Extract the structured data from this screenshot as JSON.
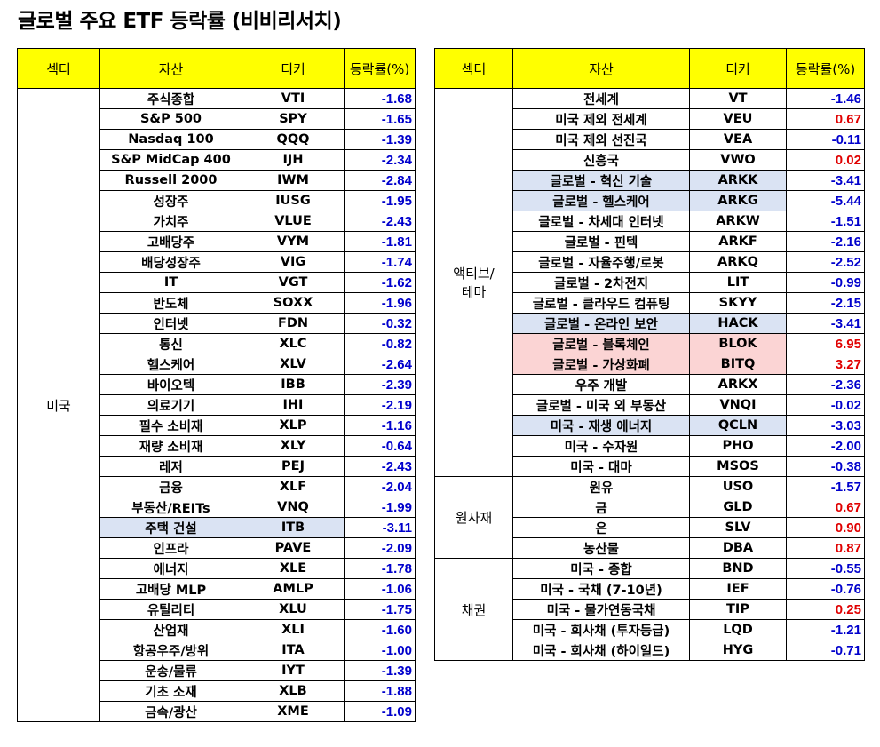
{
  "title": "글로벌 주요 ETF 등락률 (비비리서치)",
  "colors": {
    "header_bg": "#ffff00",
    "negative": "#0000cc",
    "positive": "#e00000",
    "highlight_blue": "#dae3f3",
    "highlight_red": "#fbd4d4"
  },
  "headers": {
    "sector": "섹터",
    "asset": "자산",
    "ticker": "티커",
    "change": "등락률(%)"
  },
  "left": {
    "sector": "미국",
    "rows": [
      {
        "asset": "주식종합",
        "ticker": "VTI",
        "change": "-1.68"
      },
      {
        "asset": "S&P 500",
        "ticker": "SPY",
        "change": "-1.65"
      },
      {
        "asset": "Nasdaq 100",
        "ticker": "QQQ",
        "change": "-1.39"
      },
      {
        "asset": "S&P MidCap 400",
        "ticker": "IJH",
        "change": "-2.34"
      },
      {
        "asset": "Russell 2000",
        "ticker": "IWM",
        "change": "-2.84"
      },
      {
        "asset": "성장주",
        "ticker": "IUSG",
        "change": "-1.95"
      },
      {
        "asset": "가치주",
        "ticker": "VLUE",
        "change": "-2.43"
      },
      {
        "asset": "고배당주",
        "ticker": "VYM",
        "change": "-1.81"
      },
      {
        "asset": "배당성장주",
        "ticker": "VIG",
        "change": "-1.74"
      },
      {
        "asset": "IT",
        "ticker": "VGT",
        "change": "-1.62"
      },
      {
        "asset": "반도체",
        "ticker": "SOXX",
        "change": "-1.96"
      },
      {
        "asset": "인터넷",
        "ticker": "FDN",
        "change": "-0.32"
      },
      {
        "asset": "통신",
        "ticker": "XLC",
        "change": "-0.82"
      },
      {
        "asset": "헬스케어",
        "ticker": "XLV",
        "change": "-2.64"
      },
      {
        "asset": "바이오텍",
        "ticker": "IBB",
        "change": "-2.39"
      },
      {
        "asset": "의료기기",
        "ticker": "IHI",
        "change": "-2.19"
      },
      {
        "asset": "필수 소비재",
        "ticker": "XLP",
        "change": "-1.16"
      },
      {
        "asset": "재량 소비재",
        "ticker": "XLY",
        "change": "-0.64"
      },
      {
        "asset": "레저",
        "ticker": "PEJ",
        "change": "-2.43"
      },
      {
        "asset": "금융",
        "ticker": "XLF",
        "change": "-2.04"
      },
      {
        "asset": "부동산/REITs",
        "ticker": "VNQ",
        "change": "-1.99"
      },
      {
        "asset": "주택 건설",
        "ticker": "ITB",
        "change": "-3.11",
        "highlight": "blue"
      },
      {
        "asset": "인프라",
        "ticker": "PAVE",
        "change": "-2.09"
      },
      {
        "asset": "에너지",
        "ticker": "XLE",
        "change": "-1.78"
      },
      {
        "asset": "고배당 MLP",
        "ticker": "AMLP",
        "change": "-1.06"
      },
      {
        "asset": "유틸리티",
        "ticker": "XLU",
        "change": "-1.75"
      },
      {
        "asset": "산업재",
        "ticker": "XLI",
        "change": "-1.60"
      },
      {
        "asset": "항공우주/방위",
        "ticker": "ITA",
        "change": "-1.00"
      },
      {
        "asset": "운송/물류",
        "ticker": "IYT",
        "change": "-1.39"
      },
      {
        "asset": "기초 소재",
        "ticker": "XLB",
        "change": "-1.88"
      },
      {
        "asset": "금속/광산",
        "ticker": "XME",
        "change": "-1.09"
      }
    ]
  },
  "right": {
    "groups": [
      {
        "sector": "액티브/\n테마",
        "rows": [
          {
            "asset": "전세계",
            "ticker": "VT",
            "change": "-1.46"
          },
          {
            "asset": "미국 제외 전세계",
            "ticker": "VEU",
            "change": "0.67"
          },
          {
            "asset": "미국 제외 선진국",
            "ticker": "VEA",
            "change": "-0.11"
          },
          {
            "asset": "신흥국",
            "ticker": "VWO",
            "change": "0.02"
          },
          {
            "asset": "글로벌 - 혁신 기술",
            "ticker": "ARKK",
            "change": "-3.41",
            "highlight": "blue"
          },
          {
            "asset": "글로벌 - 헬스케어",
            "ticker": "ARKG",
            "change": "-5.44",
            "highlight": "blue"
          },
          {
            "asset": "글로벌 - 차세대 인터넷",
            "ticker": "ARKW",
            "change": "-1.51"
          },
          {
            "asset": "글로벌 - 핀텍",
            "ticker": "ARKF",
            "change": "-2.16"
          },
          {
            "asset": "글로벌 - 자율주행/로봇",
            "ticker": "ARKQ",
            "change": "-2.52"
          },
          {
            "asset": "글로벌 - 2차전지",
            "ticker": "LIT",
            "change": "-0.99"
          },
          {
            "asset": "글로벌 - 클라우드 컴퓨팅",
            "ticker": "SKYY",
            "change": "-2.15"
          },
          {
            "asset": "글로벌 - 온라인 보안",
            "ticker": "HACK",
            "change": "-3.41",
            "highlight": "blue"
          },
          {
            "asset": "글로벌 - 블록체인",
            "ticker": "BLOK",
            "change": "6.95",
            "highlight": "red"
          },
          {
            "asset": "글로벌 - 가상화폐",
            "ticker": "BITQ",
            "change": "3.27",
            "highlight": "red"
          },
          {
            "asset": "우주 개발",
            "ticker": "ARKX",
            "change": "-2.36"
          },
          {
            "asset": "글로벌 - 미국 외 부동산",
            "ticker": "VNQI",
            "change": "-0.02"
          },
          {
            "asset": "미국 - 재생 에너지",
            "ticker": "QCLN",
            "change": "-3.03",
            "highlight": "blue"
          },
          {
            "asset": "미국 - 수자원",
            "ticker": "PHO",
            "change": "-2.00"
          },
          {
            "asset": "미국 - 대마",
            "ticker": "MSOS",
            "change": "-0.38"
          }
        ]
      },
      {
        "sector": "원자재",
        "rows": [
          {
            "asset": "원유",
            "ticker": "USO",
            "change": "-1.57"
          },
          {
            "asset": "금",
            "ticker": "GLD",
            "change": "0.67"
          },
          {
            "asset": "은",
            "ticker": "SLV",
            "change": "0.90"
          },
          {
            "asset": "농산물",
            "ticker": "DBA",
            "change": "0.87"
          }
        ]
      },
      {
        "sector": "채권",
        "rows": [
          {
            "asset": "미국 - 종합",
            "ticker": "BND",
            "change": "-0.55"
          },
          {
            "asset": "미국 - 국채 (7-10년)",
            "ticker": "IEF",
            "change": "-0.76"
          },
          {
            "asset": "미국 - 물가연동국채",
            "ticker": "TIP",
            "change": "0.25"
          },
          {
            "asset": "미국 - 회사채 (투자등급)",
            "ticker": "LQD",
            "change": "-1.21"
          },
          {
            "asset": "미국 - 회사채 (하이일드)",
            "ticker": "HYG",
            "change": "-0.71"
          }
        ]
      }
    ]
  }
}
